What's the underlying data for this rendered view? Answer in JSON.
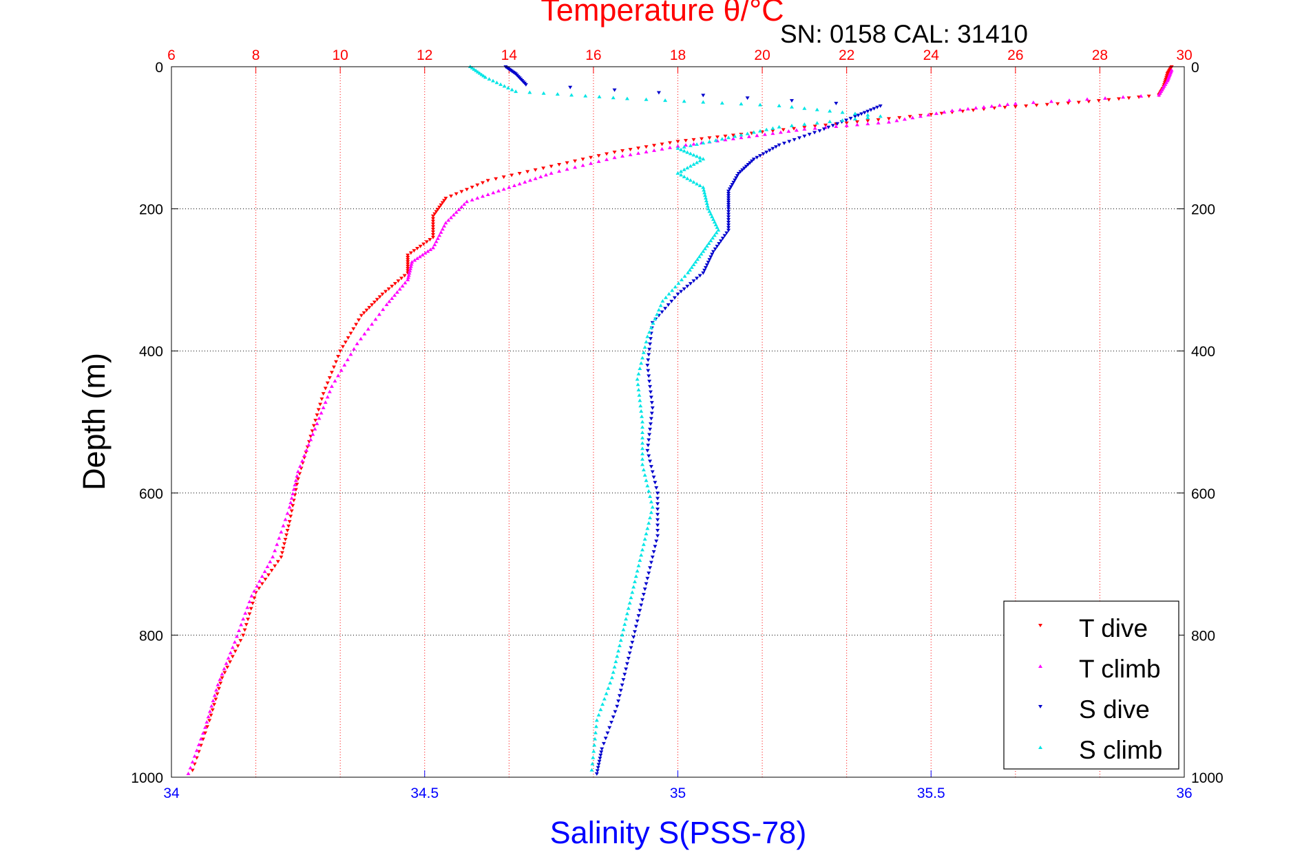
{
  "serial_label": "SN: 0158  CAL: 31410",
  "colors": {
    "temp_axis": "#ff0000",
    "sal_axis": "#0000ff",
    "t_dive": "#ff0000",
    "t_climb": "#ff00ff",
    "s_dive": "#0000cc",
    "s_climb": "#00e5e5"
  },
  "chart_data": {
    "type": "scatter",
    "title": "Temperature θ/°C",
    "xlabel": "Salinity S(PSS-78)",
    "ylabel": "Depth (m)",
    "grid": true,
    "legend_position": "bottom-right",
    "y_axis": {
      "label": "Depth (m)",
      "range": [
        0,
        1000
      ],
      "reversed": true,
      "ticks": [
        "0",
        "200",
        "400",
        "600",
        "800",
        "1000"
      ]
    },
    "temperature_axis": {
      "position": "top",
      "label": "Temperature θ/°C",
      "range": [
        6,
        30
      ],
      "ticks": [
        "6",
        "8",
        "10",
        "12",
        "14",
        "16",
        "18",
        "20",
        "22",
        "24",
        "26",
        "28",
        "30"
      ]
    },
    "salinity_axis": {
      "position": "bottom",
      "label": "Salinity S(PSS-78)",
      "range": [
        34,
        36
      ],
      "ticks": [
        "34",
        "34.5",
        "35",
        "35.5",
        "36"
      ]
    },
    "series": [
      {
        "name": "T dive",
        "axis": "temperature",
        "marker": "triangle-down",
        "points": [
          {
            "x": 29.7,
            "y": 0
          },
          {
            "x": 29.6,
            "y": 10
          },
          {
            "x": 29.5,
            "y": 30
          },
          {
            "x": 29.4,
            "y": 40
          },
          {
            "x": 27.5,
            "y": 50
          },
          {
            "x": 25.5,
            "y": 58
          },
          {
            "x": 23.5,
            "y": 70
          },
          {
            "x": 21.5,
            "y": 82
          },
          {
            "x": 19.5,
            "y": 95
          },
          {
            "x": 18.0,
            "y": 105
          },
          {
            "x": 16.5,
            "y": 120
          },
          {
            "x": 15.0,
            "y": 140
          },
          {
            "x": 13.5,
            "y": 160
          },
          {
            "x": 12.5,
            "y": 185
          },
          {
            "x": 12.2,
            "y": 210
          },
          {
            "x": 12.2,
            "y": 240
          },
          {
            "x": 11.6,
            "y": 265
          },
          {
            "x": 11.6,
            "y": 290
          },
          {
            "x": 11.0,
            "y": 320
          },
          {
            "x": 10.5,
            "y": 350
          },
          {
            "x": 10.0,
            "y": 400
          },
          {
            "x": 9.6,
            "y": 460
          },
          {
            "x": 9.3,
            "y": 520
          },
          {
            "x": 9.0,
            "y": 580
          },
          {
            "x": 8.8,
            "y": 640
          },
          {
            "x": 8.6,
            "y": 690
          },
          {
            "x": 8.0,
            "y": 740
          },
          {
            "x": 7.7,
            "y": 800
          },
          {
            "x": 7.2,
            "y": 860
          },
          {
            "x": 6.9,
            "y": 920
          },
          {
            "x": 6.5,
            "y": 990
          }
        ]
      },
      {
        "name": "T climb",
        "axis": "temperature",
        "marker": "triangle-up",
        "points": [
          {
            "x": 29.7,
            "y": 5
          },
          {
            "x": 29.6,
            "y": 20
          },
          {
            "x": 29.4,
            "y": 40
          },
          {
            "x": 26.0,
            "y": 52
          },
          {
            "x": 24.5,
            "y": 62
          },
          {
            "x": 23.0,
            "y": 78
          },
          {
            "x": 21.0,
            "y": 88
          },
          {
            "x": 19.5,
            "y": 100
          },
          {
            "x": 18.0,
            "y": 112
          },
          {
            "x": 16.5,
            "y": 128
          },
          {
            "x": 15.0,
            "y": 150
          },
          {
            "x": 14.0,
            "y": 170
          },
          {
            "x": 13.0,
            "y": 190
          },
          {
            "x": 12.5,
            "y": 220
          },
          {
            "x": 12.2,
            "y": 255
          },
          {
            "x": 11.7,
            "y": 275
          },
          {
            "x": 11.6,
            "y": 300
          },
          {
            "x": 11.1,
            "y": 335
          },
          {
            "x": 10.4,
            "y": 390
          },
          {
            "x": 9.8,
            "y": 450
          },
          {
            "x": 9.4,
            "y": 510
          },
          {
            "x": 9.0,
            "y": 570
          },
          {
            "x": 8.8,
            "y": 620
          },
          {
            "x": 8.4,
            "y": 690
          },
          {
            "x": 7.9,
            "y": 745
          },
          {
            "x": 7.5,
            "y": 810
          },
          {
            "x": 7.1,
            "y": 870
          },
          {
            "x": 6.8,
            "y": 930
          },
          {
            "x": 6.4,
            "y": 995
          }
        ]
      },
      {
        "name": "S dive",
        "axis": "salinity",
        "marker": "triangle-down",
        "points": [
          {
            "x": 34.66,
            "y": 0
          },
          {
            "x": 34.68,
            "y": 10
          },
          {
            "x": 34.7,
            "y": 25
          },
          {
            "x": 35.4,
            "y": 55
          },
          {
            "x": 35.35,
            "y": 70
          },
          {
            "x": 35.28,
            "y": 90
          },
          {
            "x": 35.2,
            "y": 110
          },
          {
            "x": 35.15,
            "y": 130
          },
          {
            "x": 35.12,
            "y": 150
          },
          {
            "x": 35.1,
            "y": 175
          },
          {
            "x": 35.1,
            "y": 200
          },
          {
            "x": 35.1,
            "y": 230
          },
          {
            "x": 35.07,
            "y": 260
          },
          {
            "x": 35.05,
            "y": 290
          },
          {
            "x": 35.0,
            "y": 320
          },
          {
            "x": 34.95,
            "y": 360
          },
          {
            "x": 34.94,
            "y": 420
          },
          {
            "x": 34.95,
            "y": 480
          },
          {
            "x": 34.94,
            "y": 540
          },
          {
            "x": 34.96,
            "y": 600
          },
          {
            "x": 34.96,
            "y": 660
          },
          {
            "x": 34.94,
            "y": 720
          },
          {
            "x": 34.92,
            "y": 780
          },
          {
            "x": 34.9,
            "y": 840
          },
          {
            "x": 34.88,
            "y": 900
          },
          {
            "x": 34.85,
            "y": 960
          },
          {
            "x": 34.84,
            "y": 995
          }
        ]
      },
      {
        "name": "S climb",
        "axis": "salinity",
        "marker": "triangle-up",
        "points": [
          {
            "x": 34.59,
            "y": 0
          },
          {
            "x": 34.62,
            "y": 15
          },
          {
            "x": 34.68,
            "y": 35
          },
          {
            "x": 34.9,
            "y": 45
          },
          {
            "x": 35.2,
            "y": 55
          },
          {
            "x": 35.4,
            "y": 70
          },
          {
            "x": 35.2,
            "y": 85
          },
          {
            "x": 35.1,
            "y": 100
          },
          {
            "x": 35.0,
            "y": 115
          },
          {
            "x": 35.05,
            "y": 130
          },
          {
            "x": 35.0,
            "y": 150
          },
          {
            "x": 35.05,
            "y": 170
          },
          {
            "x": 35.06,
            "y": 200
          },
          {
            "x": 35.08,
            "y": 230
          },
          {
            "x": 35.05,
            "y": 260
          },
          {
            "x": 35.02,
            "y": 290
          },
          {
            "x": 34.97,
            "y": 330
          },
          {
            "x": 34.94,
            "y": 380
          },
          {
            "x": 34.92,
            "y": 440
          },
          {
            "x": 34.93,
            "y": 500
          },
          {
            "x": 34.93,
            "y": 560
          },
          {
            "x": 34.95,
            "y": 620
          },
          {
            "x": 34.93,
            "y": 680
          },
          {
            "x": 34.91,
            "y": 740
          },
          {
            "x": 34.89,
            "y": 800
          },
          {
            "x": 34.87,
            "y": 860
          },
          {
            "x": 34.84,
            "y": 920
          },
          {
            "x": 34.83,
            "y": 990
          }
        ]
      }
    ]
  }
}
